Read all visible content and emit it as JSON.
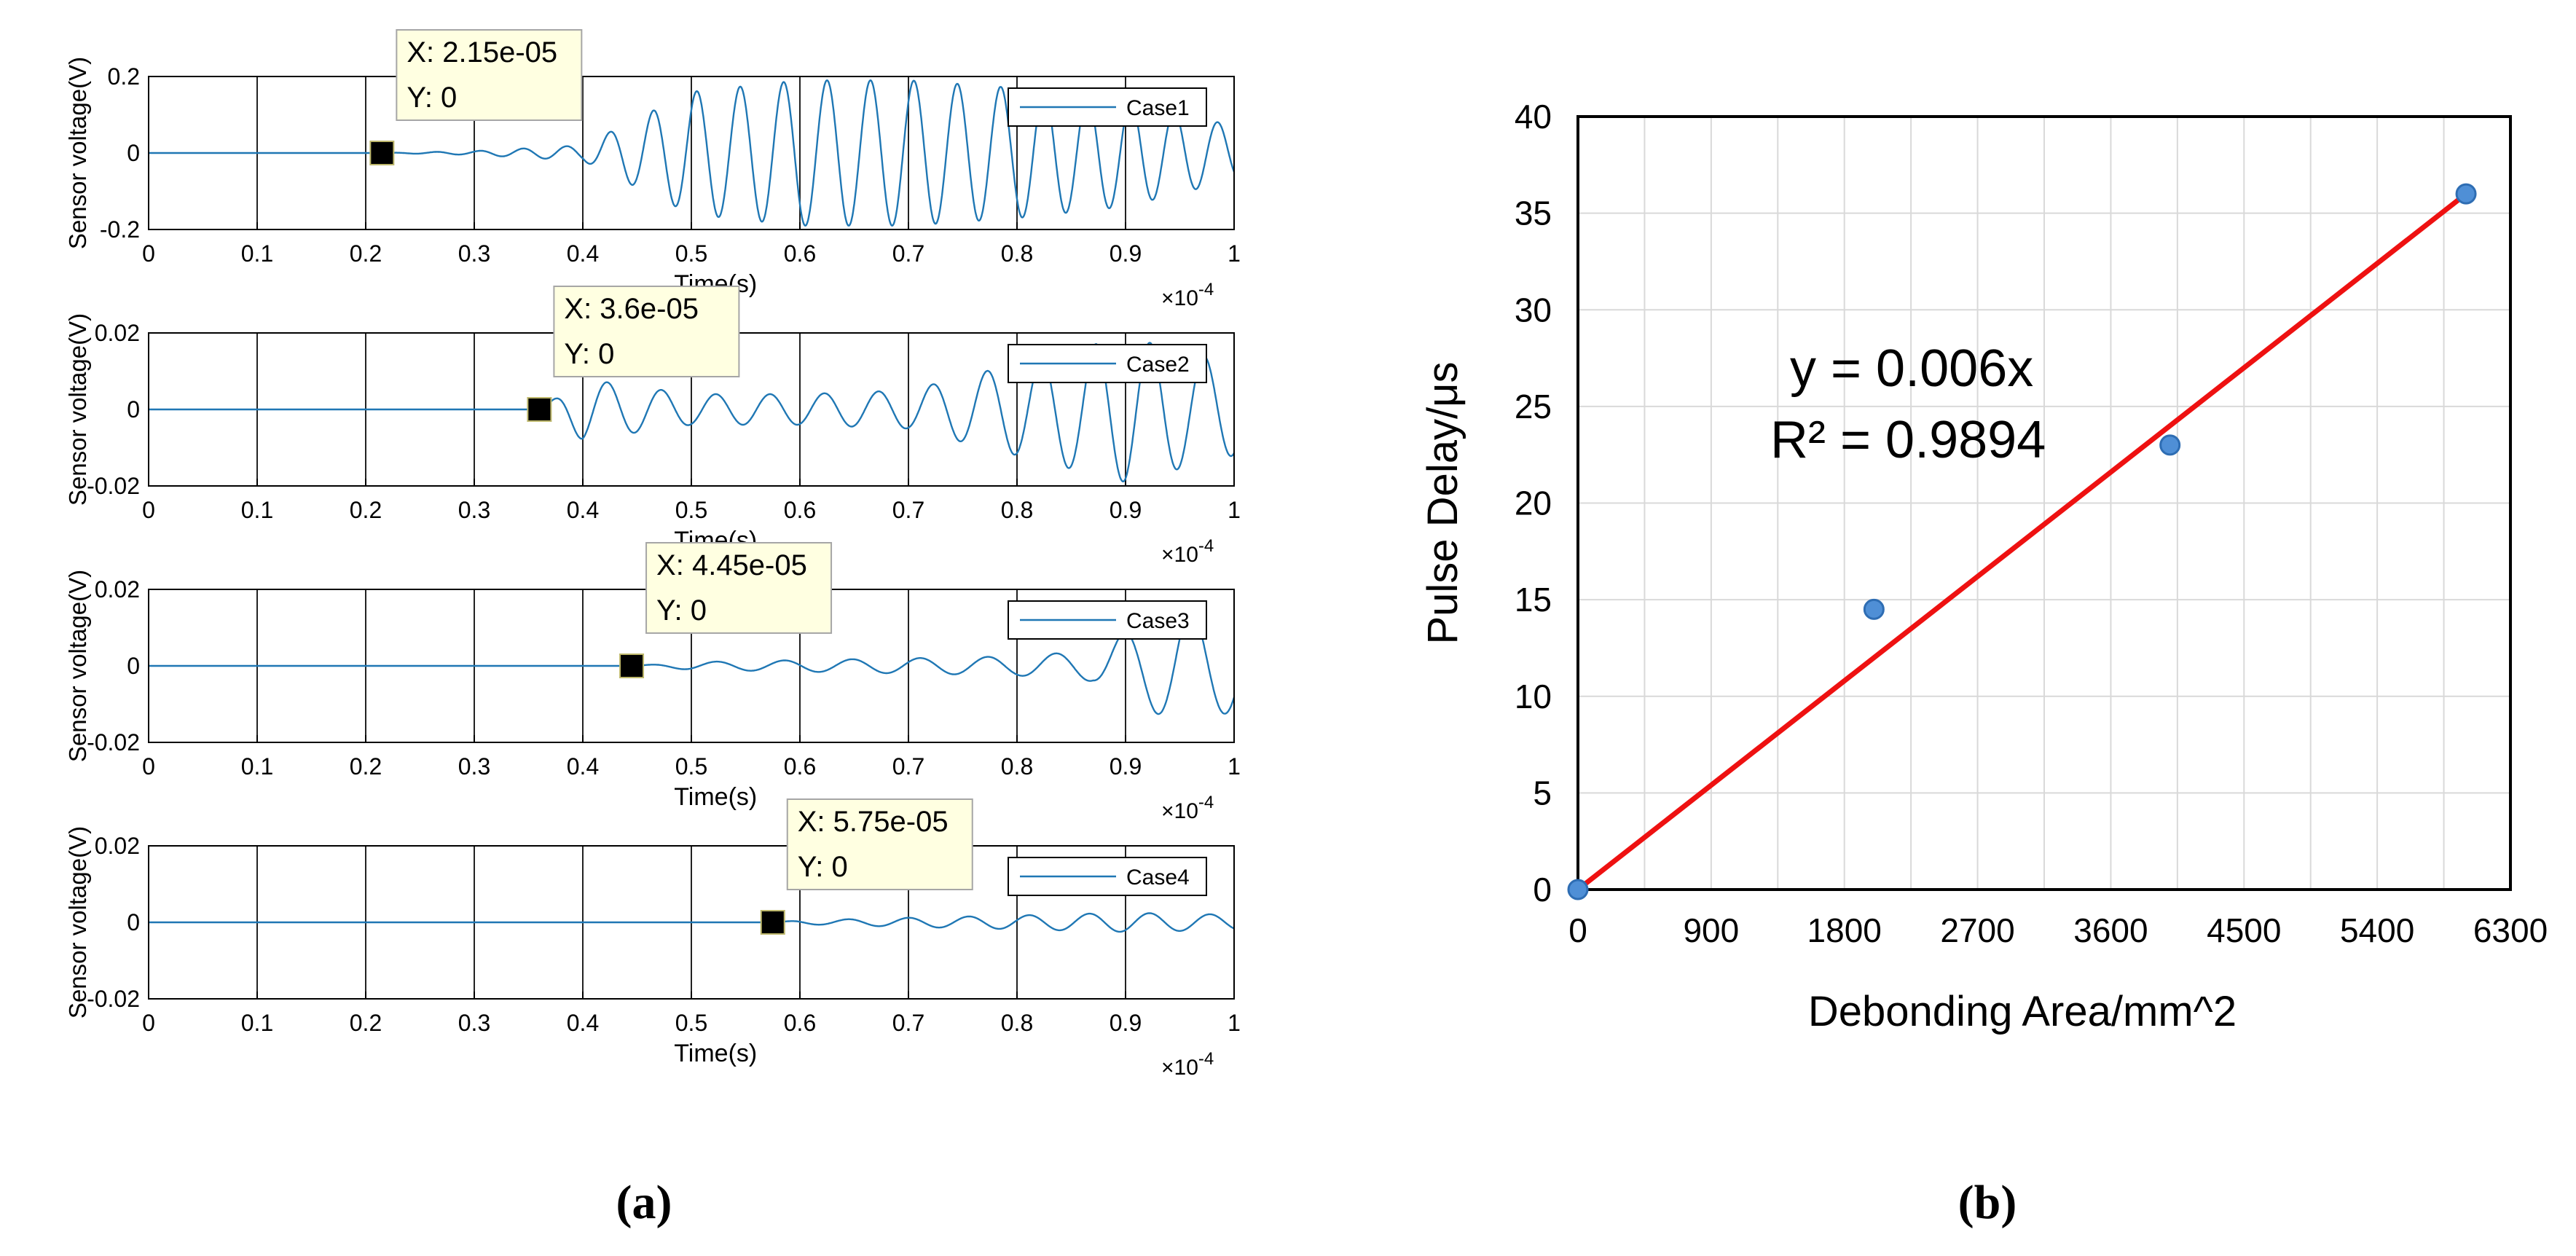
{
  "chart_data": [
    {
      "type": "line",
      "panel": "a",
      "title": "",
      "xlabel": "Time(s)",
      "ylabel": "Sensor voltage(V)",
      "x_multiplier_label": "×10",
      "x_multiplier_exp": "-4",
      "xlim": [
        0,
        1
      ],
      "xticks": [
        0,
        0.1,
        0.2,
        0.3,
        0.4,
        0.5,
        0.6,
        0.7,
        0.8,
        0.9,
        1
      ],
      "xtick_labels": [
        "0",
        "0.1",
        "0.2",
        "0.3",
        "0.4",
        "0.5",
        "0.6",
        "0.7",
        "0.8",
        "0.9",
        "1"
      ],
      "grid": "vertical-only",
      "subplots": [
        {
          "name": "Case1",
          "legend": "Case1",
          "legend_position": "top-right",
          "ylim": [
            -0.2,
            0.2
          ],
          "yticks": [
            -0.2,
            0,
            0.2
          ],
          "ytick_labels": [
            "-0.2",
            "0",
            "0.2"
          ],
          "onset": 0.215,
          "peak_amplitude": 0.2,
          "cycles_per_unit": 25,
          "datatip": {
            "x_label": "X: 2.15e-05",
            "y_label": "Y: 0",
            "x": 0.215,
            "y": 0
          },
          "envelope": {
            "x": [
              0.215,
              0.3,
              0.4,
              0.5,
              0.6,
              0.7,
              0.8,
              0.9,
              1.0
            ],
            "amplitude": [
              0,
              0.005,
              0.02,
              0.16,
              0.19,
              0.19,
              0.17,
              0.14,
              0.07
            ]
          }
        },
        {
          "name": "Case2",
          "legend": "Case2",
          "legend_position": "top-right",
          "ylim": [
            -0.02,
            0.02
          ],
          "yticks": [
            -0.02,
            0,
            0.02
          ],
          "ytick_labels": [
            "-0.02",
            "0",
            "0.02"
          ],
          "onset": 0.36,
          "peak_amplitude": 0.02,
          "cycles_per_unit": 20,
          "datatip": {
            "x_label": "X: 3.6e-05",
            "y_label": "Y: 0",
            "x": 0.36,
            "y": 0
          },
          "envelope": {
            "x": [
              0.36,
              0.4,
              0.5,
              0.6,
              0.7,
              0.8,
              0.9,
              1.0
            ],
            "amplitude": [
              0,
              0.008,
              0.004,
              0.004,
              0.005,
              0.012,
              0.019,
              0.012
            ]
          }
        },
        {
          "name": "Case3",
          "legend": "Case3",
          "legend_position": "top-right",
          "ylim": [
            -0.02,
            0.02
          ],
          "yticks": [
            -0.02,
            0,
            0.02
          ],
          "ytick_labels": [
            "-0.02",
            "0",
            "0.02"
          ],
          "onset": 0.445,
          "peak_amplitude": 0.02,
          "cycles_per_unit": 16,
          "datatip": {
            "x_label": "X: 4.45e-05",
            "y_label": "Y: 0",
            "x": 0.445,
            "y": 0
          },
          "envelope": {
            "x": [
              0.445,
              0.5,
              0.6,
              0.7,
              0.8,
              0.87,
              0.9,
              0.95,
              1.0
            ],
            "amplitude": [
              0,
              0.001,
              0.0015,
              0.002,
              0.0025,
              0.004,
              0.009,
              0.015,
              0.012
            ]
          }
        },
        {
          "name": "Case4",
          "legend": "Case4",
          "legend_position": "top-right",
          "ylim": [
            -0.02,
            0.02
          ],
          "yticks": [
            -0.02,
            0,
            0.02
          ],
          "ytick_labels": [
            "-0.02",
            "0",
            "0.02"
          ],
          "onset": 0.575,
          "peak_amplitude": 0.003,
          "cycles_per_unit": 18,
          "datatip": {
            "x_label": "X: 5.75e-05",
            "y_label": "Y: 0",
            "x": 0.575,
            "y": 0
          },
          "envelope": {
            "x": [
              0.575,
              0.6,
              0.7,
              0.8,
              0.9,
              1.0
            ],
            "amplitude": [
              0,
              0.0005,
              0.0012,
              0.0018,
              0.0025,
              0.002
            ]
          }
        }
      ]
    },
    {
      "type": "scatter",
      "panel": "b",
      "title": "",
      "xlabel": "Debonding Area/mm^2",
      "ylabel": "Pulse Delay/μs",
      "xlim": [
        0,
        6300
      ],
      "ylim": [
        0,
        40
      ],
      "xticks": [
        0,
        900,
        1800,
        2700,
        3600,
        4500,
        5400,
        6300
      ],
      "xtick_labels": [
        "0",
        "900",
        "1800",
        "2700",
        "3600",
        "4500",
        "5400",
        "6300"
      ],
      "yticks": [
        0,
        5,
        10,
        15,
        20,
        25,
        30,
        35,
        40
      ],
      "ytick_labels": [
        "0",
        "5",
        "10",
        "15",
        "20",
        "25",
        "30",
        "35",
        "40"
      ],
      "grid": true,
      "points": [
        {
          "x": 0,
          "y": 0
        },
        {
          "x": 2000,
          "y": 14.5
        },
        {
          "x": 4000,
          "y": 23
        },
        {
          "x": 6000,
          "y": 36
        }
      ],
      "trendline": {
        "slope": 0.006,
        "x_range": [
          0,
          6000
        ],
        "color": "#ee1111"
      },
      "annotations": [
        "y = 0.006x",
        "R² = 0.9894"
      ],
      "point_color": "#4f8fd6"
    }
  ],
  "panel_labels": {
    "a": "(a)",
    "b": "(b)"
  },
  "colors": {
    "signal": "#1f77b4",
    "axis": "#000000",
    "grid_a": "#222222",
    "grid_b": "#d9d9d9",
    "datatip_bg": "#ffffe1"
  }
}
